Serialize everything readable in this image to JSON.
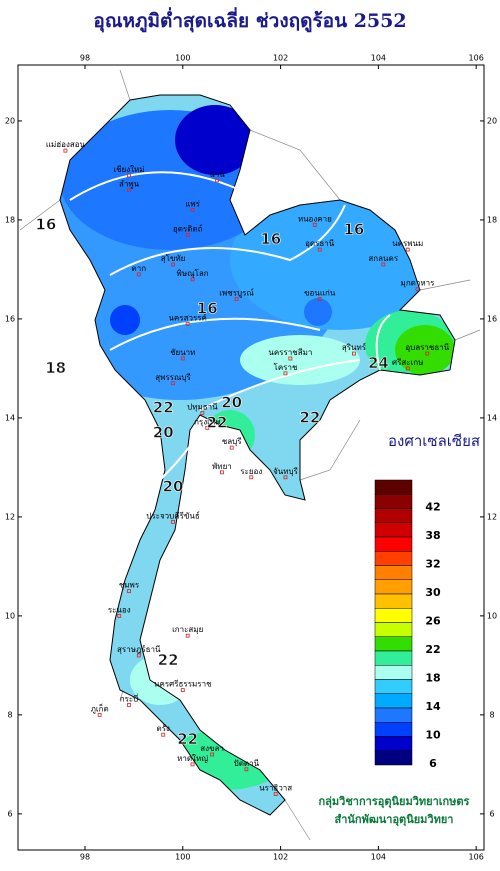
{
  "header": {
    "title": "อุณหภูมิต่ำสุดเฉลี่ย ช่วงฤดูร้อน 2552"
  },
  "map": {
    "lon_ticks": [
      98,
      100,
      102,
      104,
      106
    ],
    "lat_ticks": [
      20,
      18,
      16,
      14,
      12,
      10,
      8,
      6
    ],
    "lon_range": [
      96.63,
      106.16
    ],
    "lat_range": [
      21.13,
      5.27
    ],
    "contour_labels": [
      {
        "text": "16",
        "lon": 97.2,
        "lat": 17.9
      },
      {
        "text": "16",
        "lon": 101.8,
        "lat": 17.6
      },
      {
        "text": "16",
        "lon": 103.5,
        "lat": 17.8
      },
      {
        "text": "16",
        "lon": 100.5,
        "lat": 16.2
      },
      {
        "text": "18",
        "lon": 97.4,
        "lat": 15.0
      },
      {
        "text": "20",
        "lon": 101.0,
        "lat": 14.3
      },
      {
        "text": "20",
        "lon": 99.6,
        "lat": 13.7
      },
      {
        "text": "20",
        "lon": 99.8,
        "lat": 12.6
      },
      {
        "text": "22",
        "lon": 99.6,
        "lat": 14.2
      },
      {
        "text": "22",
        "lon": 100.7,
        "lat": 13.9
      },
      {
        "text": "22",
        "lon": 102.6,
        "lat": 14.0
      },
      {
        "text": "24",
        "lon": 104.0,
        "lat": 15.1
      },
      {
        "text": "22",
        "lon": 99.7,
        "lat": 9.1
      },
      {
        "text": "22",
        "lon": 100.1,
        "lat": 7.5
      }
    ],
    "places": [
      {
        "text": "แม่ฮ่องสอน",
        "lon": 97.6,
        "lat": 19.4
      },
      {
        "text": "เชียงใหม่",
        "lon": 98.9,
        "lat": 18.9
      },
      {
        "text": "ลำพูน",
        "lon": 98.9,
        "lat": 18.6
      },
      {
        "text": "น่าน",
        "lon": 100.7,
        "lat": 18.8
      },
      {
        "text": "แพร่",
        "lon": 100.2,
        "lat": 18.2
      },
      {
        "text": "อุตรดิตถ์",
        "lon": 100.1,
        "lat": 17.7
      },
      {
        "text": "ตาก",
        "lon": 99.1,
        "lat": 16.9
      },
      {
        "text": "สุโขทัย",
        "lon": 99.8,
        "lat": 17.1
      },
      {
        "text": "พิษณุโลก",
        "lon": 100.2,
        "lat": 16.8
      },
      {
        "text": "เพชรบูรณ์",
        "lon": 101.1,
        "lat": 16.4
      },
      {
        "text": "หนองคาย",
        "lon": 102.7,
        "lat": 17.9
      },
      {
        "text": "อุดรธานี",
        "lon": 102.8,
        "lat": 17.4
      },
      {
        "text": "นครพนม",
        "lon": 104.6,
        "lat": 17.4
      },
      {
        "text": "สกลนคร",
        "lon": 104.1,
        "lat": 17.1
      },
      {
        "text": "ขอนแก่น",
        "lon": 102.8,
        "lat": 16.4
      },
      {
        "text": "มุกดาหาร",
        "lon": 104.8,
        "lat": 16.6
      },
      {
        "text": "นครสวรรค์",
        "lon": 100.1,
        "lat": 15.9
      },
      {
        "text": "ชัยนาท",
        "lon": 100.0,
        "lat": 15.2
      },
      {
        "text": "นครราชสีมา",
        "lon": 102.2,
        "lat": 15.2
      },
      {
        "text": "โคราช",
        "lon": 102.1,
        "lat": 14.9
      },
      {
        "text": "อุบลราชธานี",
        "lon": 105.0,
        "lat": 15.3
      },
      {
        "text": "ศรีสะเกษ",
        "lon": 104.6,
        "lat": 15.0
      },
      {
        "text": "สุรินทร์",
        "lon": 103.5,
        "lat": 15.3
      },
      {
        "text": "สุพรรณบุรี",
        "lon": 99.8,
        "lat": 14.7
      },
      {
        "text": "ปทุมธานี",
        "lon": 100.4,
        "lat": 14.1
      },
      {
        "text": "กรุงเทพ",
        "lon": 100.5,
        "lat": 13.8
      },
      {
        "text": "ชลบุรี",
        "lon": 101.0,
        "lat": 13.4
      },
      {
        "text": "พัทยา",
        "lon": 100.8,
        "lat": 12.9
      },
      {
        "text": "ระยอง",
        "lon": 101.4,
        "lat": 12.8
      },
      {
        "text": "จันทบุรี",
        "lon": 102.1,
        "lat": 12.8
      },
      {
        "text": "ประจวบคีรีขันธ์",
        "lon": 99.8,
        "lat": 11.9
      },
      {
        "text": "ชุมพร",
        "lon": 98.9,
        "lat": 10.5
      },
      {
        "text": "ระนอง",
        "lon": 98.7,
        "lat": 10.0
      },
      {
        "text": "เกาะสมุย",
        "lon": 100.1,
        "lat": 9.6
      },
      {
        "text": "สุราษฎร์ธานี",
        "lon": 99.1,
        "lat": 9.2
      },
      {
        "text": "นครศรีธรรมราช",
        "lon": 100.0,
        "lat": 8.5
      },
      {
        "text": "ภูเก็ต",
        "lon": 98.3,
        "lat": 8.0
      },
      {
        "text": "กระบี่",
        "lon": 98.9,
        "lat": 8.2
      },
      {
        "text": "ตรัง",
        "lon": 99.6,
        "lat": 7.6
      },
      {
        "text": "สงขลา",
        "lon": 100.6,
        "lat": 7.2
      },
      {
        "text": "หาดใหญ่",
        "lon": 100.2,
        "lat": 7.0
      },
      {
        "text": "ปัตตานี",
        "lon": 101.3,
        "lat": 6.9
      },
      {
        "text": "นราธิวาส",
        "lon": 101.9,
        "lat": 6.4
      }
    ]
  },
  "legend": {
    "title": "องศาเซลเซียส",
    "colors": [
      "#5c0000",
      "#8b0000",
      "#b00000",
      "#d00000",
      "#ff0000",
      "#ff4000",
      "#ff7f00",
      "#ff9f00",
      "#ffc000",
      "#ffff00",
      "#c8ff00",
      "#33dd00",
      "#33ee99",
      "#aaffee",
      "#33ccff",
      "#00aaff",
      "#1e78ff",
      "#0040ff",
      "#0000cc",
      "#000080"
    ],
    "labels": [
      42,
      38,
      32,
      30,
      26,
      22,
      18,
      14,
      10,
      6
    ]
  },
  "footer": {
    "lines": [
      "กลุ่มวิชาการอุตุนิยมวิทยาเกษตร",
      "สำนักพัฒนาอุตุนิยมวิทยา"
    ]
  }
}
